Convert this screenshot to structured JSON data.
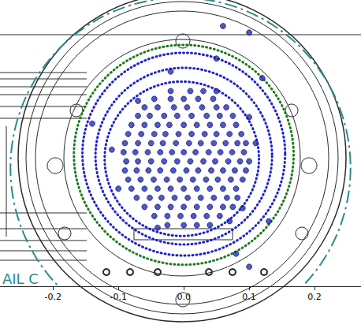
{
  "chart_data": {
    "type": "scatter",
    "annotation": "AIL C",
    "color": "#1f2fbf",
    "marker": "circle",
    "xlim": [
      -0.281,
      0.271
    ],
    "xticks": [
      -0.2,
      -0.1,
      {
        "value": 0,
        "label": "0.0"
      },
      0.1,
      0.2
    ],
    "ylim": [
      -0.2,
      0.24
    ],
    "tick_labels": "x",
    "grid": false,
    "rings": [
      {
        "cx": -0.005,
        "cy": -0.018,
        "r": 0.26,
        "color": "#2a8c8c",
        "line_style": "dashdot"
      },
      {
        "cx": 0.0,
        "cy": 0.002,
        "r": 0.168,
        "color": "#1e7a1e",
        "line_style": "dotted"
      },
      {
        "cx": 0.0,
        "cy": 0.003,
        "r": 0.155,
        "color": "#1a22d0",
        "line_style": "dotted"
      },
      {
        "cx": 0.0,
        "cy": 0.0,
        "r": 0.135,
        "color": "#1a22d0",
        "line_style": "dotted"
      },
      {
        "cx": -0.003,
        "cy": -0.004,
        "r": 0.118,
        "color": "#1a22d0",
        "line_style": "dotted"
      }
    ],
    "points": [
      [
        -0.02,
        0.1
      ],
      [
        0.01,
        0.1
      ],
      [
        0.03,
        0.1
      ],
      [
        -0.045,
        0.088
      ],
      [
        -0.02,
        0.088
      ],
      [
        0.0,
        0.088
      ],
      [
        0.022,
        0.088
      ],
      [
        0.045,
        0.088
      ],
      [
        -0.06,
        0.075
      ],
      [
        -0.04,
        0.075
      ],
      [
        -0.015,
        0.075
      ],
      [
        0.005,
        0.075
      ],
      [
        0.028,
        0.075
      ],
      [
        0.05,
        0.075
      ],
      [
        0.065,
        0.075
      ],
      [
        -0.07,
        0.062
      ],
      [
        -0.052,
        0.062
      ],
      [
        -0.03,
        0.062
      ],
      [
        -0.01,
        0.062
      ],
      [
        0.012,
        0.062
      ],
      [
        0.035,
        0.062
      ],
      [
        0.055,
        0.062
      ],
      [
        0.075,
        0.062
      ],
      [
        -0.08,
        0.048
      ],
      [
        -0.06,
        0.048
      ],
      [
        -0.04,
        0.048
      ],
      [
        -0.022,
        0.048
      ],
      [
        0.0,
        0.048
      ],
      [
        0.02,
        0.048
      ],
      [
        0.04,
        0.048
      ],
      [
        0.06,
        0.048
      ],
      [
        0.08,
        0.048
      ],
      [
        -0.085,
        0.034
      ],
      [
        -0.065,
        0.034
      ],
      [
        -0.045,
        0.034
      ],
      [
        -0.028,
        0.034
      ],
      [
        -0.008,
        0.034
      ],
      [
        0.012,
        0.034
      ],
      [
        0.032,
        0.034
      ],
      [
        0.05,
        0.034
      ],
      [
        0.07,
        0.034
      ],
      [
        0.088,
        0.034
      ],
      [
        -0.09,
        0.02
      ],
      [
        -0.07,
        0.02
      ],
      [
        -0.05,
        0.02
      ],
      [
        -0.032,
        0.02
      ],
      [
        -0.012,
        0.02
      ],
      [
        0.008,
        0.02
      ],
      [
        0.026,
        0.02
      ],
      [
        0.046,
        0.02
      ],
      [
        0.064,
        0.02
      ],
      [
        0.082,
        0.02
      ],
      [
        0.095,
        0.02
      ],
      [
        -0.092,
        0.006
      ],
      [
        -0.074,
        0.006
      ],
      [
        -0.055,
        0.006
      ],
      [
        -0.036,
        0.006
      ],
      [
        -0.018,
        0.006
      ],
      [
        0.0,
        0.006
      ],
      [
        0.018,
        0.006
      ],
      [
        0.038,
        0.006
      ],
      [
        0.056,
        0.006
      ],
      [
        0.074,
        0.006
      ],
      [
        0.092,
        0.006
      ],
      [
        -0.088,
        -0.008
      ],
      [
        -0.07,
        -0.008
      ],
      [
        -0.05,
        -0.008
      ],
      [
        -0.03,
        -0.008
      ],
      [
        -0.01,
        -0.008
      ],
      [
        0.01,
        -0.008
      ],
      [
        0.03,
        -0.008
      ],
      [
        0.048,
        -0.008
      ],
      [
        0.068,
        -0.008
      ],
      [
        0.086,
        -0.008
      ],
      [
        0.1,
        -0.008
      ],
      [
        -0.09,
        -0.022
      ],
      [
        -0.072,
        -0.022
      ],
      [
        -0.054,
        -0.022
      ],
      [
        -0.036,
        -0.022
      ],
      [
        -0.016,
        -0.022
      ],
      [
        0.004,
        -0.022
      ],
      [
        0.022,
        -0.022
      ],
      [
        0.042,
        -0.022
      ],
      [
        0.06,
        -0.022
      ],
      [
        0.078,
        -0.022
      ],
      [
        0.095,
        -0.022
      ],
      [
        -0.085,
        -0.036
      ],
      [
        -0.066,
        -0.036
      ],
      [
        -0.046,
        -0.036
      ],
      [
        -0.026,
        -0.036
      ],
      [
        -0.006,
        -0.036
      ],
      [
        0.014,
        -0.036
      ],
      [
        0.034,
        -0.036
      ],
      [
        0.052,
        -0.036
      ],
      [
        0.072,
        -0.036
      ],
      [
        0.09,
        -0.036
      ],
      [
        -0.08,
        -0.05
      ],
      [
        -0.06,
        -0.05
      ],
      [
        -0.04,
        -0.05
      ],
      [
        -0.02,
        -0.05
      ],
      [
        0.0,
        -0.05
      ],
      [
        0.02,
        -0.05
      ],
      [
        0.04,
        -0.05
      ],
      [
        0.06,
        -0.05
      ],
      [
        0.08,
        -0.05
      ],
      [
        -0.072,
        -0.064
      ],
      [
        -0.052,
        -0.064
      ],
      [
        -0.034,
        -0.064
      ],
      [
        -0.014,
        -0.064
      ],
      [
        0.006,
        -0.064
      ],
      [
        0.026,
        -0.064
      ],
      [
        0.046,
        -0.064
      ],
      [
        0.066,
        -0.064
      ],
      [
        0.082,
        -0.064
      ],
      [
        -0.06,
        -0.078
      ],
      [
        -0.04,
        -0.078
      ],
      [
        -0.02,
        -0.078
      ],
      [
        0.0,
        -0.078
      ],
      [
        0.02,
        -0.078
      ],
      [
        0.04,
        -0.078
      ],
      [
        0.06,
        -0.078
      ],
      [
        0.075,
        -0.078
      ],
      [
        -0.045,
        -0.092
      ],
      [
        -0.025,
        -0.092
      ],
      [
        -0.005,
        -0.092
      ],
      [
        0.015,
        -0.092
      ],
      [
        0.035,
        -0.092
      ],
      [
        0.055,
        -0.092
      ],
      [
        -0.025,
        -0.106
      ],
      [
        0.0,
        -0.106
      ],
      [
        0.02,
        -0.106
      ],
      [
        0.04,
        -0.106
      ],
      [
        0.11,
        0.02
      ],
      [
        -0.1,
        -0.05
      ],
      [
        0.07,
        -0.1
      ],
      [
        -0.07,
        0.085
      ],
      [
        0.1,
        0.06
      ],
      [
        0.05,
        0.1
      ],
      [
        -0.04,
        -0.11
      ],
      [
        0.09,
        -0.08
      ],
      [
        -0.11,
        0.01
      ],
      [
        0.13,
        -0.1
      ],
      [
        -0.14,
        0.05
      ],
      [
        0.05,
        0.15
      ],
      [
        0.1,
        0.19
      ],
      [
        0.06,
        0.2
      ],
      [
        0.12,
        0.12
      ],
      [
        -0.02,
        0.13
      ],
      [
        0.08,
        -0.15
      ],
      [
        0.1,
        -0.17
      ]
    ]
  }
}
